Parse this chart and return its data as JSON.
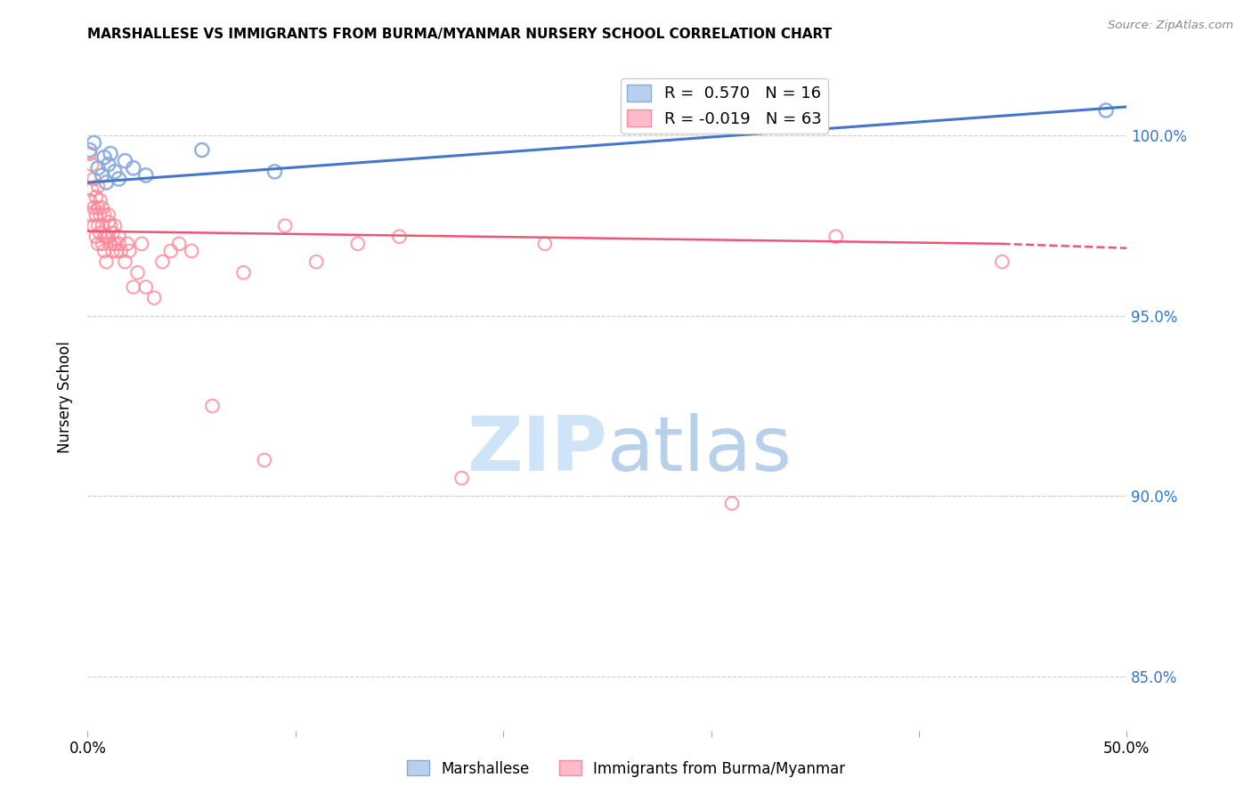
{
  "title": "MARSHALLESE VS IMMIGRANTS FROM BURMA/MYANMAR NURSERY SCHOOL CORRELATION CHART",
  "source": "Source: ZipAtlas.com",
  "ylabel": "Nursery School",
  "yticks": [
    85.0,
    90.0,
    95.0,
    100.0
  ],
  "ytick_labels": [
    "85.0%",
    "90.0%",
    "95.0%",
    "100.0%"
  ],
  "xlim": [
    0.0,
    0.5
  ],
  "ylim": [
    83.5,
    102.0
  ],
  "legend_blue_r": "0.570",
  "legend_blue_n": "16",
  "legend_pink_r": "-0.019",
  "legend_pink_n": "63",
  "blue_color": "#88AADD",
  "pink_color": "#FF8899",
  "blue_line_color": "#4477CC",
  "pink_line_color": "#EE5577",
  "grid_color": "#CCCCCC",
  "blue_scatter_x": [
    0.001,
    0.003,
    0.005,
    0.007,
    0.008,
    0.009,
    0.01,
    0.011,
    0.013,
    0.015,
    0.018,
    0.022,
    0.028,
    0.055,
    0.09,
    0.49
  ],
  "blue_scatter_y": [
    99.6,
    99.8,
    99.1,
    98.9,
    99.4,
    98.7,
    99.2,
    99.5,
    99.0,
    98.8,
    99.3,
    99.1,
    98.9,
    99.6,
    99.0,
    100.7
  ],
  "pink_scatter_x": [
    0.001,
    0.001,
    0.002,
    0.002,
    0.002,
    0.003,
    0.003,
    0.003,
    0.004,
    0.004,
    0.004,
    0.005,
    0.005,
    0.005,
    0.005,
    0.006,
    0.006,
    0.006,
    0.007,
    0.007,
    0.007,
    0.008,
    0.008,
    0.008,
    0.009,
    0.009,
    0.01,
    0.01,
    0.01,
    0.011,
    0.011,
    0.012,
    0.012,
    0.013,
    0.013,
    0.014,
    0.015,
    0.015,
    0.016,
    0.018,
    0.019,
    0.02,
    0.022,
    0.024,
    0.026,
    0.028,
    0.032,
    0.036,
    0.04,
    0.044,
    0.05,
    0.06,
    0.075,
    0.085,
    0.095,
    0.11,
    0.13,
    0.15,
    0.18,
    0.22,
    0.31,
    0.36,
    0.44
  ],
  "pink_scatter_y": [
    98.2,
    99.5,
    97.8,
    98.5,
    99.2,
    97.5,
    98.0,
    98.8,
    97.2,
    97.8,
    98.3,
    97.0,
    97.5,
    98.0,
    98.6,
    97.3,
    97.8,
    98.2,
    97.0,
    97.5,
    98.0,
    96.8,
    97.2,
    97.8,
    96.5,
    97.2,
    97.8,
    97.2,
    97.6,
    97.0,
    97.5,
    96.8,
    97.3,
    97.0,
    97.5,
    96.8,
    97.2,
    97.0,
    96.8,
    96.5,
    97.0,
    96.8,
    95.8,
    96.2,
    97.0,
    95.8,
    95.5,
    96.5,
    96.8,
    97.0,
    96.8,
    92.5,
    96.2,
    91.0,
    97.5,
    96.5,
    97.0,
    97.2,
    90.5,
    97.0,
    89.8,
    97.2,
    96.5
  ],
  "blue_line_x0": 0.0,
  "blue_line_x1": 0.5,
  "blue_line_y0": 98.7,
  "blue_line_y1": 100.8,
  "pink_line_x0": 0.0,
  "pink_line_x1": 0.44,
  "pink_line_x1_dash": 0.5,
  "pink_line_y0": 97.35,
  "pink_line_y1": 97.0,
  "pink_line_y1_dash": 96.88
}
